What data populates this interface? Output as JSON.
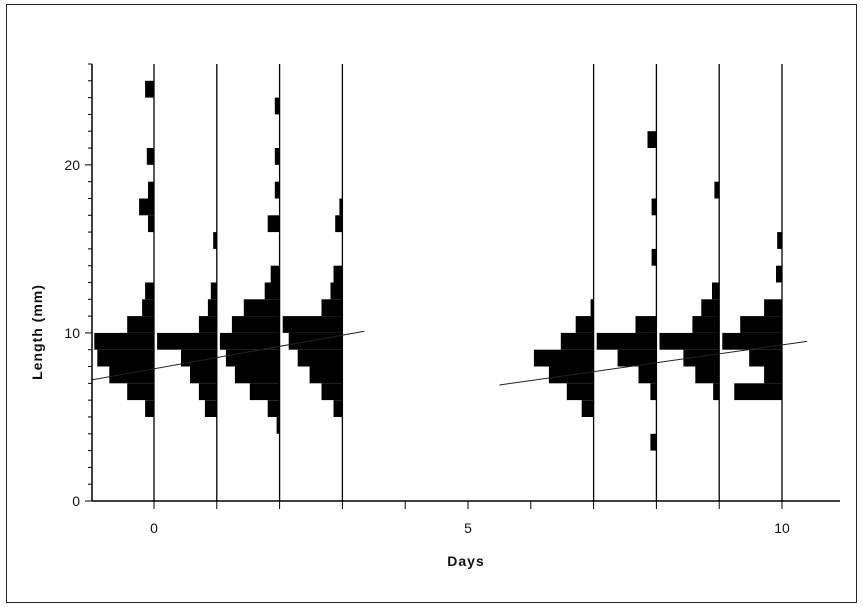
{
  "chart_data": {
    "type": "bar",
    "subtype": "length-frequency histograms by day",
    "xlabel": "Days",
    "ylabel": "Length (mm)",
    "xlim": [
      -1,
      11
    ],
    "ylim": [
      0,
      26
    ],
    "xticks": [
      0,
      5,
      10
    ],
    "yticks": [
      0,
      10,
      20
    ],
    "xtick_labels": [
      "0",
      "5",
      "10"
    ],
    "ytick_labels": [
      "0",
      "10",
      "20"
    ],
    "bar_color": "#000000",
    "histograms": [
      {
        "day": 0,
        "bins": [
          {
            "length": 5.5,
            "count": 0.15
          },
          {
            "length": 6.5,
            "count": 0.45
          },
          {
            "length": 7.5,
            "count": 0.75
          },
          {
            "length": 8.5,
            "count": 0.95
          },
          {
            "length": 9.5,
            "count": 1.0
          },
          {
            "length": 10.5,
            "count": 0.45
          },
          {
            "length": 11.5,
            "count": 0.2
          },
          {
            "length": 12.5,
            "count": 0.15
          },
          {
            "length": 16.5,
            "count": 0.1
          },
          {
            "length": 17.5,
            "count": 0.25
          },
          {
            "length": 18.5,
            "count": 0.1
          },
          {
            "length": 20.5,
            "count": 0.12
          },
          {
            "length": 24.5,
            "count": 0.15
          }
        ]
      },
      {
        "day": 1,
        "bins": [
          {
            "length": 5.5,
            "count": 0.2
          },
          {
            "length": 6.5,
            "count": 0.3
          },
          {
            "length": 7.5,
            "count": 0.45
          },
          {
            "length": 8.5,
            "count": 0.6
          },
          {
            "length": 9.5,
            "count": 1.0
          },
          {
            "length": 10.5,
            "count": 0.3
          },
          {
            "length": 11.5,
            "count": 0.15
          },
          {
            "length": 12.5,
            "count": 0.1
          },
          {
            "length": 15.5,
            "count": 0.06
          }
        ]
      },
      {
        "day": 2,
        "bins": [
          {
            "length": 4.5,
            "count": 0.05
          },
          {
            "length": 5.5,
            "count": 0.2
          },
          {
            "length": 6.5,
            "count": 0.5
          },
          {
            "length": 7.5,
            "count": 0.75
          },
          {
            "length": 8.5,
            "count": 0.9
          },
          {
            "length": 9.5,
            "count": 1.0
          },
          {
            "length": 10.5,
            "count": 0.8
          },
          {
            "length": 11.5,
            "count": 0.6
          },
          {
            "length": 12.5,
            "count": 0.25
          },
          {
            "length": 13.5,
            "count": 0.15
          },
          {
            "length": 16.5,
            "count": 0.2
          },
          {
            "length": 18.5,
            "count": 0.08
          },
          {
            "length": 20.5,
            "count": 0.08
          },
          {
            "length": 23.5,
            "count": 0.08
          }
        ]
      },
      {
        "day": 3,
        "bins": [
          {
            "length": 5.5,
            "count": 0.15
          },
          {
            "length": 6.5,
            "count": 0.35
          },
          {
            "length": 7.5,
            "count": 0.55
          },
          {
            "length": 8.5,
            "count": 0.75
          },
          {
            "length": 9.5,
            "count": 0.9
          },
          {
            "length": 10.5,
            "count": 1.0
          },
          {
            "length": 11.5,
            "count": 0.35
          },
          {
            "length": 12.5,
            "count": 0.2
          },
          {
            "length": 13.5,
            "count": 0.15
          },
          {
            "length": 16.5,
            "count": 0.12
          },
          {
            "length": 17.5,
            "count": 0.05
          }
        ]
      },
      {
        "day": 7,
        "bins": [
          {
            "length": 5.5,
            "count": 0.2
          },
          {
            "length": 6.5,
            "count": 0.45
          },
          {
            "length": 7.5,
            "count": 0.75
          },
          {
            "length": 8.5,
            "count": 1.0
          },
          {
            "length": 9.5,
            "count": 0.55
          },
          {
            "length": 10.5,
            "count": 0.3
          },
          {
            "length": 11.5,
            "count": 0.05
          }
        ]
      },
      {
        "day": 8,
        "bins": [
          {
            "length": 3.5,
            "count": 0.1
          },
          {
            "length": 6.5,
            "count": 0.1
          },
          {
            "length": 7.5,
            "count": 0.3
          },
          {
            "length": 8.5,
            "count": 0.65
          },
          {
            "length": 9.5,
            "count": 1.0
          },
          {
            "length": 10.5,
            "count": 0.35
          },
          {
            "length": 14.5,
            "count": 0.08
          },
          {
            "length": 17.5,
            "count": 0.08
          },
          {
            "length": 21.5,
            "count": 0.15
          }
        ]
      },
      {
        "day": 9,
        "bins": [
          {
            "length": 6.5,
            "count": 0.1
          },
          {
            "length": 7.5,
            "count": 0.4
          },
          {
            "length": 8.5,
            "count": 0.6
          },
          {
            "length": 9.5,
            "count": 1.0
          },
          {
            "length": 10.5,
            "count": 0.45
          },
          {
            "length": 11.5,
            "count": 0.3
          },
          {
            "length": 12.5,
            "count": 0.12
          },
          {
            "length": 18.5,
            "count": 0.08
          }
        ]
      },
      {
        "day": 10,
        "bins": [
          {
            "length": 6.5,
            "count": 0.8
          },
          {
            "length": 7.5,
            "count": 0.3
          },
          {
            "length": 8.5,
            "count": 0.55
          },
          {
            "length": 9.5,
            "count": 1.0
          },
          {
            "length": 10.5,
            "count": 0.7
          },
          {
            "length": 11.5,
            "count": 0.3
          },
          {
            "length": 13.5,
            "count": 0.1
          },
          {
            "length": 15.5,
            "count": 0.08
          }
        ]
      }
    ],
    "bin_width": 1,
    "bar_max_width_days": 0.95,
    "trend_lines": [
      {
        "x": [
          -1,
          3.35
        ],
        "y": [
          7.2,
          10.1
        ]
      },
      {
        "x": [
          5.5,
          10.4
        ],
        "y": [
          6.9,
          9.5
        ]
      }
    ],
    "grid": false,
    "legend": "none"
  }
}
